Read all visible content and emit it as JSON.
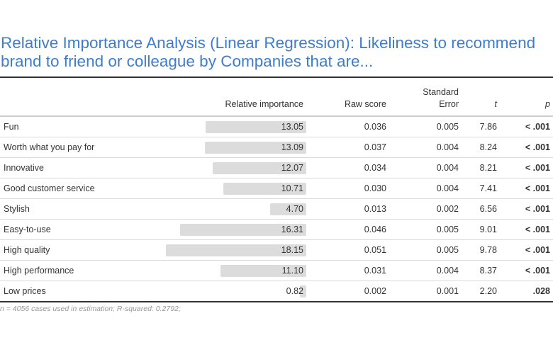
{
  "title": "Relative Importance Analysis (Linear Regression): Likeliness to recommend brand to friend or colleague by Companies that are...",
  "headers": {
    "relative_importance": "Relative importance",
    "raw_score": "Raw score",
    "standard_error_line1": "Standard",
    "standard_error_line2": "Error",
    "t": "t",
    "p": "p"
  },
  "rows": [
    {
      "label": "Fun",
      "relative_importance": "13.05",
      "raw_score": "0.036",
      "standard_error": "0.005",
      "t": "7.86",
      "p": "< .001"
    },
    {
      "label": "Worth what you pay for",
      "relative_importance": "13.09",
      "raw_score": "0.037",
      "standard_error": "0.004",
      "t": "8.24",
      "p": "< .001"
    },
    {
      "label": "Innovative",
      "relative_importance": "12.07",
      "raw_score": "0.034",
      "standard_error": "0.004",
      "t": "8.21",
      "p": "< .001"
    },
    {
      "label": "Good customer service",
      "relative_importance": "10.71",
      "raw_score": "0.030",
      "standard_error": "0.004",
      "t": "7.41",
      "p": "< .001"
    },
    {
      "label": "Stylish",
      "relative_importance": "4.70",
      "raw_score": "0.013",
      "standard_error": "0.002",
      "t": "6.56",
      "p": "< .001"
    },
    {
      "label": "Easy-to-use",
      "relative_importance": "16.31",
      "raw_score": "0.046",
      "standard_error": "0.005",
      "t": "9.01",
      "p": "< .001"
    },
    {
      "label": "High quality",
      "relative_importance": "18.15",
      "raw_score": "0.051",
      "standard_error": "0.005",
      "t": "9.78",
      "p": "< .001"
    },
    {
      "label": "High performance",
      "relative_importance": "11.10",
      "raw_score": "0.031",
      "standard_error": "0.004",
      "t": "8.37",
      "p": "< .001"
    },
    {
      "label": "Low prices",
      "relative_importance": "0.82",
      "raw_score": "0.002",
      "standard_error": "0.001",
      "t": "2.20",
      "p": ".028"
    }
  ],
  "footnote": "n = 4056 cases used in estimation; R-squared: 0.2792;",
  "colors": {
    "title": "#3e7dcc",
    "bar": "#dcdcdc",
    "text": "#333333",
    "footnote": "#999999"
  }
}
